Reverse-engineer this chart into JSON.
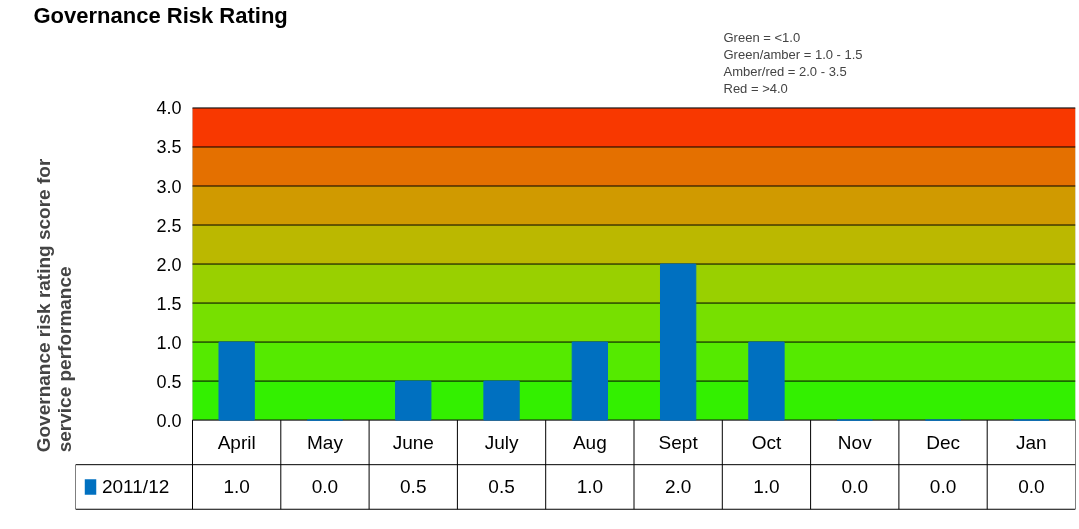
{
  "chart_data": {
    "type": "bar",
    "title": "Governance Risk Rating",
    "ylabel": "Governance risk rating score for service performance",
    "categories": [
      "April",
      "May",
      "June",
      "July",
      "Aug",
      "Sept",
      "Oct",
      "Nov",
      "Dec",
      "Jan"
    ],
    "series": [
      {
        "name": "2011/12",
        "color": "#0070c0",
        "values": [
          1.0,
          0.0,
          0.5,
          0.5,
          1.0,
          2.0,
          1.0,
          0.0,
          0.0,
          0.0
        ],
        "value_labels": [
          "1.0",
          "0.0",
          "0.5",
          "0.5",
          "1.0",
          "2.0",
          "1.0",
          "0.0",
          "0.0",
          "0.0"
        ]
      }
    ],
    "ylim": [
      0,
      4
    ],
    "yticks": [
      {
        "value": 0,
        "label": "0.0"
      },
      {
        "value": 0.5,
        "label": "0.5"
      },
      {
        "value": 1,
        "label": "1.0"
      },
      {
        "value": 1.5,
        "label": "1.5"
      },
      {
        "value": 2,
        "label": "2.0"
      },
      {
        "value": 2.5,
        "label": "2.5"
      },
      {
        "value": 3,
        "label": "3.0"
      },
      {
        "value": 3.5,
        "label": "3.5"
      },
      {
        "value": 4,
        "label": "4.0"
      }
    ],
    "grid": "y",
    "legend": "bottom",
    "bands": [
      {
        "axis": "y",
        "from": 0,
        "to": 0.5,
        "color": "#33f000"
      },
      {
        "axis": "y",
        "from": 0.5,
        "to": 1,
        "color": "#55ea00"
      },
      {
        "axis": "y",
        "from": 1,
        "to": 1.5,
        "color": "#77e000"
      },
      {
        "axis": "y",
        "from": 1.5,
        "to": 2,
        "color": "#99d000"
      },
      {
        "axis": "y",
        "from": 2,
        "to": 2.5,
        "color": "#bbb800"
      },
      {
        "axis": "y",
        "from": 2.5,
        "to": 3,
        "color": "#d09a00"
      },
      {
        "axis": "y",
        "from": 3,
        "to": 3.5,
        "color": "#e47000"
      },
      {
        "axis": "y",
        "from": 3.5,
        "to": 4,
        "color": "#f83800"
      }
    ],
    "annotations": [
      "Green = <1.0",
      "Green/amber = 1.0 - 1.5",
      "Amber/red = 2.0 - 3.5",
      "Red = >4.0"
    ]
  }
}
